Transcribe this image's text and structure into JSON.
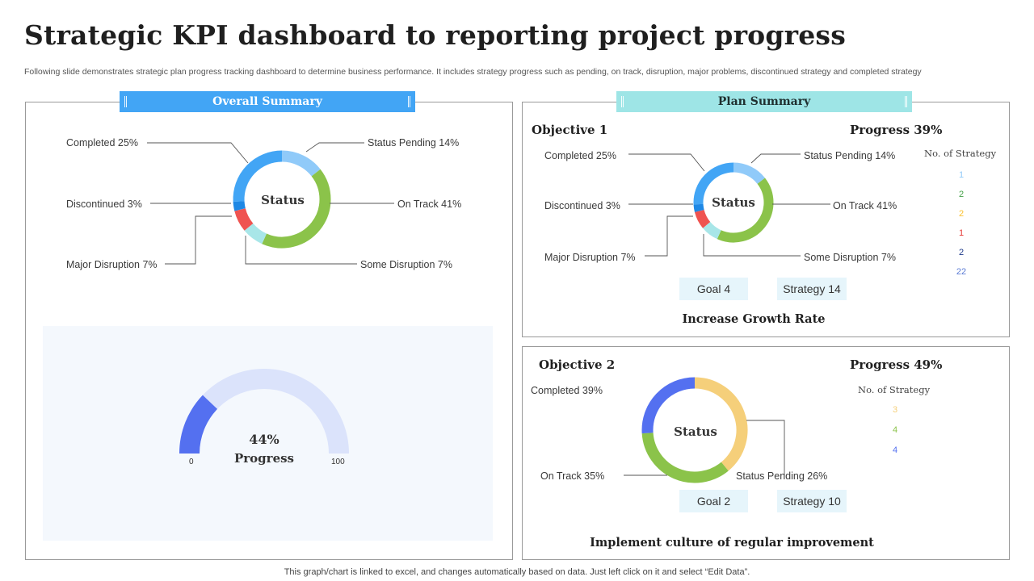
{
  "header": {
    "title": "Strategic KPI dashboard to reporting project progress",
    "subtitle": "Following slide demonstrates strategic plan progress tracking dashboard to determine business performance. It includes strategy progress such as pending, on track, disruption, major problems, discontinued strategy and completed strategy"
  },
  "overall": {
    "banner": "Overall Summary",
    "center_label": "Status",
    "gauge": {
      "value_label": "44%",
      "caption": "Progress",
      "min_label": "0",
      "max_label": "100"
    }
  },
  "plan": {
    "banner": "Plan Summary",
    "objective1": {
      "title": "Objective 1",
      "progress": "Progress 39%",
      "center_label": "Status",
      "nos_title": "No. of Strategy",
      "nos_values": [
        "1",
        "2",
        "2",
        "1",
        "2",
        "22"
      ],
      "goal": "Goal 4",
      "strategy": "Strategy 14",
      "caption": "Increase Growth Rate"
    },
    "objective2": {
      "title": "Objective 2",
      "progress": "Progress 49%",
      "center_label": "Status",
      "nos_title": "No. of Strategy",
      "nos_values": [
        "3",
        "4",
        "4"
      ],
      "goal": "Goal 2",
      "strategy": "Strategy 10",
      "caption": "Implement culture of regular improvement"
    }
  },
  "footer": {
    "note": "This graph/chart is linked to excel,  and changes automatically based on data. Just left click on it and select “Edit Data”."
  },
  "colors": {
    "completed": "#42a5f5",
    "status_pending": "#90caf9",
    "on_track": "#8bc34a",
    "some_disruption": "#a8e6e8",
    "major_disruption": "#ef5350",
    "discontinued": "#1e88e5",
    "gauge_fill": "#5470f0",
    "gauge_track": "#dbe3fb",
    "obj2_completed": "#f5cf7a",
    "obj2_pending": "#5470f0",
    "nos_obj1": [
      "#90caf9",
      "#43a047",
      "#fbc02d",
      "#e53935",
      "#1e3a8a",
      "#5b7bd5"
    ],
    "nos_obj2": [
      "#f5cf7a",
      "#8bc34a",
      "#5470f0"
    ]
  },
  "chart_data": [
    {
      "type": "pie",
      "name": "Overall Summary Status",
      "categories": [
        "Completed",
        "Status Pending",
        "On Track",
        "Some Disruption",
        "Major Disruption",
        "Discontinued"
      ],
      "values": [
        25,
        14,
        41,
        7,
        7,
        3
      ],
      "labels": [
        "Completed  25%",
        "Status Pending  14%",
        "On Track  41%",
        "Some Disruption  7%",
        "Major Disruption  7%",
        "Discontinued  3%"
      ]
    },
    {
      "type": "pie",
      "name": "Overall Progress",
      "categories": [
        "Progress",
        "Remaining"
      ],
      "values": [
        44,
        56
      ],
      "range": [
        0,
        100
      ]
    },
    {
      "type": "pie",
      "name": "Objective 1 Status",
      "categories": [
        "Completed",
        "Status Pending",
        "On Track",
        "Some Disruption",
        "Major Disruption",
        "Discontinued"
      ],
      "values": [
        25,
        14,
        41,
        7,
        7,
        3
      ],
      "labels": [
        "Completed  25%",
        "Status Pending  14%",
        "On Track  41%",
        "Some Disruption  7%",
        "Major Disruption  7%",
        "Discontinued  3%"
      ]
    },
    {
      "type": "pie",
      "name": "Objective 2 Status",
      "categories": [
        "Completed",
        "Status Pending",
        "On Track"
      ],
      "values": [
        39,
        26,
        35
      ],
      "labels": [
        "Completed  39%",
        "Status Pending  26%",
        "On Track  35%"
      ]
    }
  ]
}
